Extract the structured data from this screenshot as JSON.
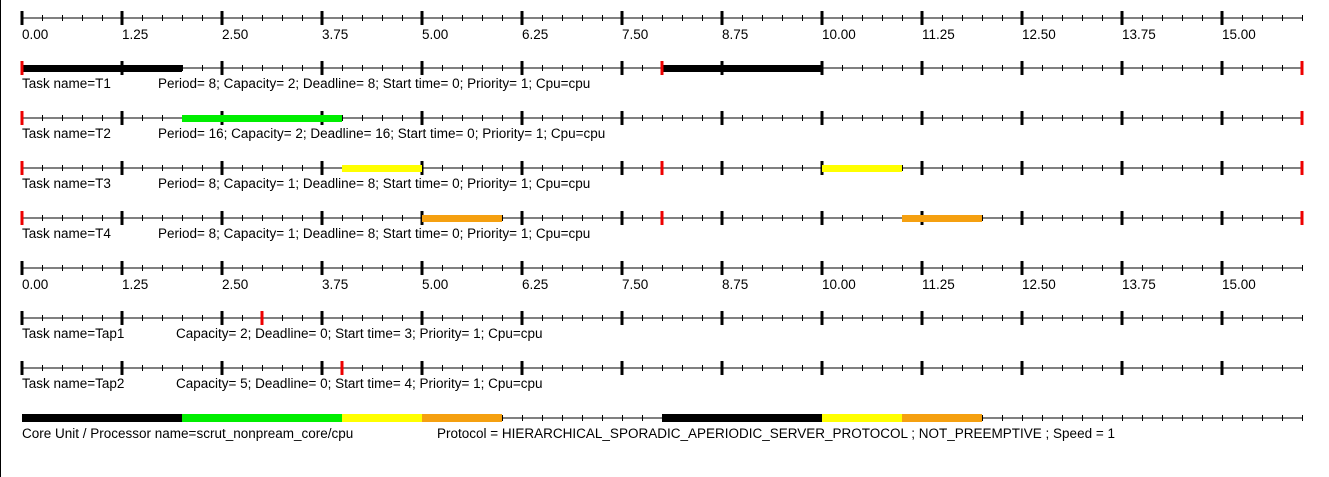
{
  "chart_data": {
    "type": "gantt",
    "timeline": {
      "t_min": 0,
      "t_max": 16,
      "tick_labels": [
        "0.00",
        "1.25",
        "2.50",
        "3.75",
        "5.00",
        "6.25",
        "7.50",
        "8.75",
        "10.00",
        "11.25",
        "12.50",
        "13.75",
        "15.00"
      ]
    },
    "tasks": [
      {
        "id": "t1",
        "name_label": "Task name=T1",
        "params": "Period= 8; Capacity= 2; Deadline= 8; Start time= 0; Priority= 1; Cpu=cpu",
        "color": "#000000",
        "release_marks": [
          0,
          8,
          16
        ],
        "segments": [
          [
            0,
            2
          ],
          [
            8,
            10
          ]
        ]
      },
      {
        "id": "t2",
        "name_label": "Task name=T2",
        "params": "Period= 16; Capacity= 2; Deadline= 16; Start time= 0; Priority= 1; Cpu=cpu",
        "color": "#00ee00",
        "release_marks": [
          0,
          16
        ],
        "segments": [
          [
            2,
            4
          ]
        ]
      },
      {
        "id": "t3",
        "name_label": "Task name=T3",
        "params": "Period= 8; Capacity= 1; Deadline= 8; Start time= 0; Priority= 1; Cpu=cpu",
        "color": "#ffff00",
        "release_marks": [
          0,
          8,
          16
        ],
        "segments": [
          [
            4,
            5
          ],
          [
            10,
            11
          ]
        ]
      },
      {
        "id": "t4",
        "name_label": "Task name=T4",
        "params": "Period= 8; Capacity= 1; Deadline= 8; Start time= 0; Priority= 1; Cpu=cpu",
        "color": "#f5a010",
        "release_marks": [
          0,
          8,
          16
        ],
        "segments": [
          [
            5,
            6
          ],
          [
            11,
            12
          ]
        ]
      },
      {
        "id": "tap1",
        "name_label": "Task name=Tap1",
        "params": "Capacity= 2; Deadline= 0; Start time= 3; Priority= 1; Cpu=cpu",
        "color": "#000000",
        "release_marks": [
          3
        ],
        "segments": []
      },
      {
        "id": "tap2",
        "name_label": "Task name=Tap2",
        "params": "Capacity= 5; Deadline= 0; Start time= 4; Priority= 1; Cpu=cpu",
        "color": "#000000",
        "release_marks": [
          4
        ],
        "segments": []
      }
    ],
    "processor": {
      "name_label": "Core Unit / Processor name=scrut_nonpream_core/cpu",
      "protocol": "Protocol = HIERARCHICAL_SPORADIC_APERIODIC_SERVER_PROTOCOL ; NOT_PREEMPTIVE ; Speed =  1",
      "segments": [
        {
          "from": 0,
          "to": 2,
          "color": "#000000"
        },
        {
          "from": 2,
          "to": 4,
          "color": "#00ee00"
        },
        {
          "from": 4,
          "to": 5,
          "color": "#ffff00"
        },
        {
          "from": 5,
          "to": 6,
          "color": "#f5a010"
        },
        {
          "from": 8,
          "to": 10,
          "color": "#000000"
        },
        {
          "from": 10,
          "to": 11,
          "color": "#ffff00"
        },
        {
          "from": 11,
          "to": 12,
          "color": "#f5a010"
        }
      ]
    },
    "release_mark_color": "#ee0000"
  }
}
